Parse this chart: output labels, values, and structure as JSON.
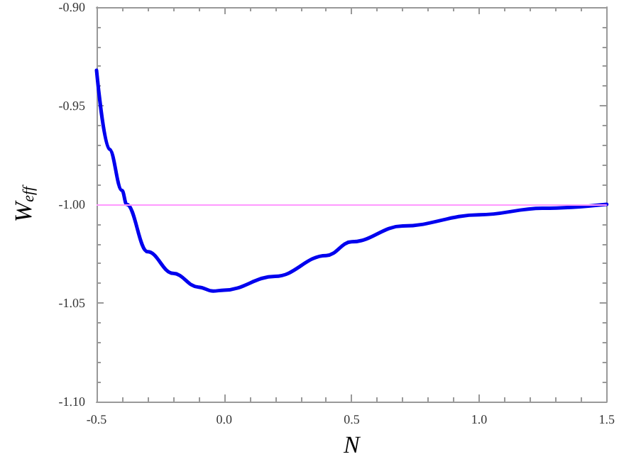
{
  "chart_data": {
    "type": "line",
    "xlabel": "N",
    "ylabel": "W$_{eff}$",
    "series": [
      {
        "color": "#0000ee",
        "x": [
          -0.5,
          -0.45,
          -0.4,
          -0.382,
          -0.3,
          -0.2,
          -0.1,
          -0.043,
          0,
          0.2,
          0.4,
          0.5,
          0.7,
          1.0,
          1.25,
          1.5
        ],
        "values": [
          -0.932,
          -0.972,
          -0.993,
          -1.0,
          -1.024,
          -1.035,
          -1.042,
          -1.044,
          -1.0435,
          -1.0365,
          -1.026,
          -1.019,
          -1.011,
          -1.0053,
          -1.002,
          -1.0
        ]
      }
    ],
    "xlim": [
      -0.5,
      1.5
    ],
    "xticks": [
      {
        "value": -0.5,
        "label": "-0.5"
      },
      {
        "value": 0,
        "label": "0.0"
      },
      {
        "value": 0.5,
        "label": "0.5"
      },
      {
        "value": 1,
        "label": "1.0"
      },
      {
        "value": 1.5,
        "label": "1.5"
      }
    ],
    "ylim": [
      -1.1,
      -0.9
    ],
    "yticks": [
      {
        "value": -1.1,
        "label": "-1.10"
      },
      {
        "value": -1.05,
        "label": "-1.05"
      },
      {
        "value": -1,
        "label": "-1.00"
      },
      {
        "value": -0.95,
        "label": "-0.95"
      },
      {
        "value": -0.9,
        "label": "-0.90"
      }
    ],
    "ref_lines": [
      {
        "axis": "y",
        "value": -1,
        "color": "#ff99ff"
      }
    ],
    "grid": false,
    "marker": "none",
    "line_style": "solid"
  }
}
